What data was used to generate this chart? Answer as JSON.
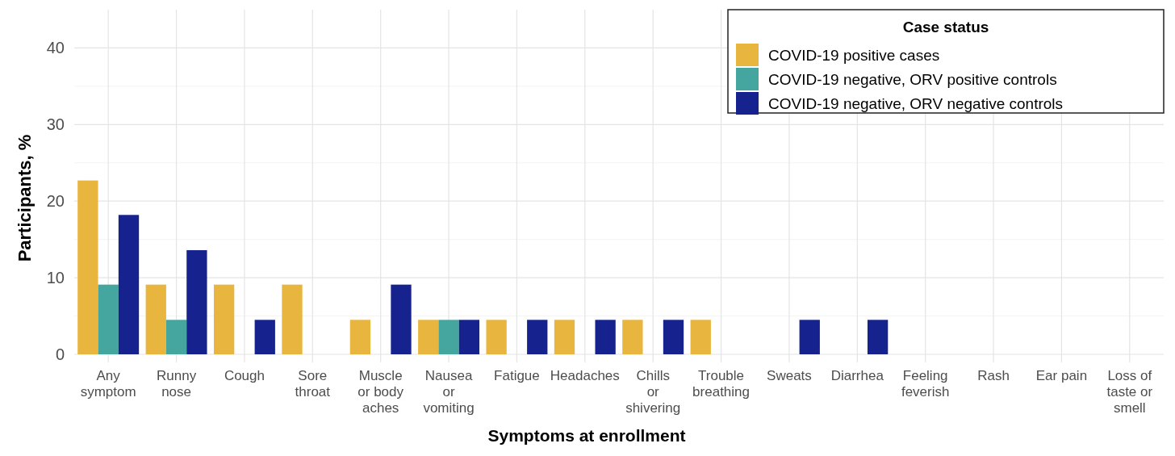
{
  "chart_data": {
    "type": "bar",
    "xlabel": "Symptoms at enrollment",
    "ylabel": "Participants, %",
    "legend_title": "Case status",
    "legend": "top right",
    "grid": true,
    "categories": [
      "Any\nsymptom",
      "Runny\nnose",
      "Cough",
      "Sore\nthroat",
      "Muscle\nor body\naches",
      "Nausea\nor\nvomiting",
      "Fatigue",
      "Headaches",
      "Chills\nor\nshivering",
      "Trouble\nbreathing",
      "Sweats",
      "Diarrhea",
      "Feeling\nfeverish",
      "Rash",
      "Ear pain",
      "Loss of\ntaste or\nsmell"
    ],
    "ylim": [
      0,
      45
    ],
    "yticks": [
      0,
      10,
      20,
      30,
      40
    ],
    "series": [
      {
        "name": "COVID-19 positive cases",
        "color": "#e8b63f",
        "values": [
          22.7,
          9.1,
          9.1,
          9.1,
          4.5,
          4.5,
          4.5,
          4.5,
          4.5,
          4.5,
          0,
          0,
          0,
          0,
          0,
          0
        ]
      },
      {
        "name": "COVID-19 negative, ORV positive controls",
        "color": "#45a69f",
        "values": [
          9.1,
          4.5,
          0,
          0,
          0,
          4.5,
          0,
          0,
          0,
          0,
          0,
          0,
          0,
          0,
          0,
          0
        ]
      },
      {
        "name": "COVID-19 negative, ORV negative controls",
        "color": "#16238f",
        "values": [
          18.2,
          13.6,
          4.5,
          0,
          9.1,
          4.5,
          4.5,
          4.5,
          4.5,
          0,
          4.5,
          4.5,
          0,
          0,
          0,
          0
        ]
      }
    ]
  }
}
